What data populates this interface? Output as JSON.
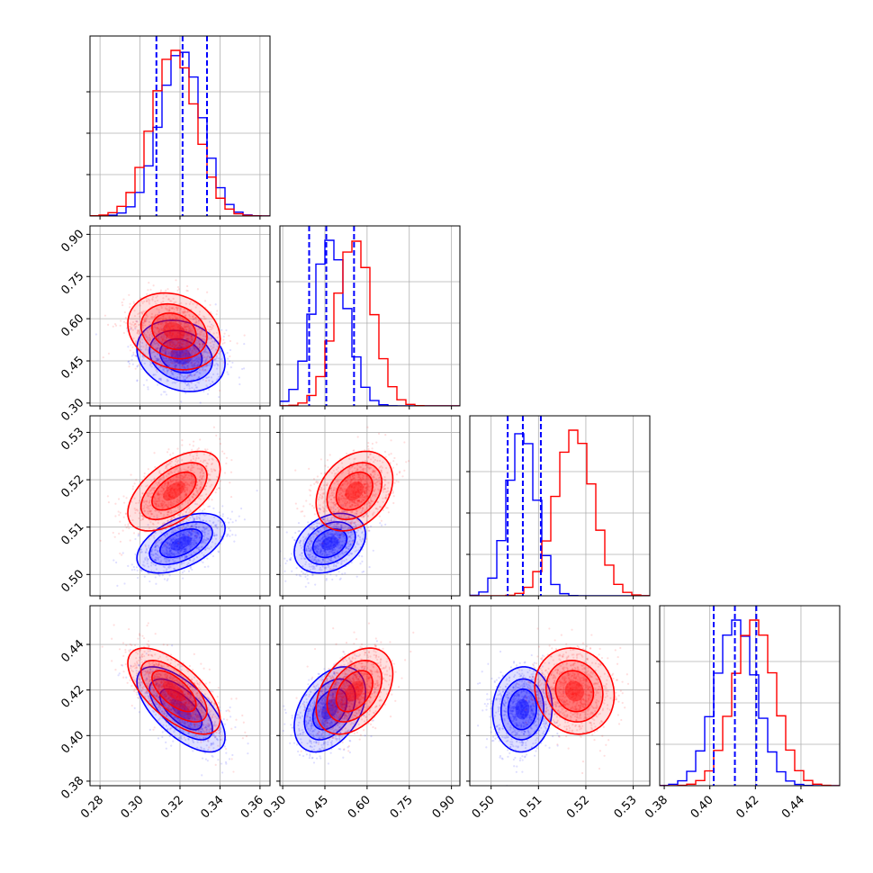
{
  "chart_data": {
    "type": "corner",
    "description_of_layout": "4x4 lower-triangular corner plot",
    "grid": true,
    "colors": {
      "series_a": "#0000ff",
      "series_b": "#ff0000"
    },
    "parameters": [
      {
        "ticks": [
          "0.28",
          "0.30",
          "0.32",
          "0.34",
          "0.36"
        ],
        "tick_values": [
          0.28,
          0.3,
          0.32,
          0.34,
          0.36
        ],
        "range": [
          0.275,
          0.365
        ]
      },
      {
        "ticks": [
          "0.30",
          "0.45",
          "0.60",
          "0.75",
          "0.90"
        ],
        "tick_values": [
          0.3,
          0.45,
          0.6,
          0.75,
          0.9
        ],
        "range": [
          0.29,
          0.93
        ]
      },
      {
        "ticks": [
          "0.50",
          "0.51",
          "0.52",
          "0.53"
        ],
        "tick_values": [
          0.5,
          0.51,
          0.52,
          0.53
        ],
        "range": [
          0.4955,
          0.5335
        ]
      },
      {
        "ticks": [
          "0.38",
          "0.40",
          "0.42",
          "0.44"
        ],
        "tick_values": [
          0.38,
          0.4,
          0.42,
          0.44
        ],
        "range": [
          0.378,
          0.457
        ]
      }
    ],
    "series": [
      {
        "color": "#0000ff",
        "means": [
          0.3205,
          0.4677,
          0.5066,
          0.4115
        ],
        "sigmas": [
          0.0105,
          0.0604,
          0.003,
          0.0089
        ],
        "quantiles": [
          [
            0.3082,
            0.3213,
            0.3335
          ],
          [
            0.394,
            0.455,
            0.5536
          ],
          [
            0.5035,
            0.5067,
            0.5105
          ],
          [
            0.4017,
            0.411,
            0.4204
          ]
        ],
        "correlations": {
          "1-0": -0.2,
          "2-0": 0.5,
          "2-1": 0.3,
          "3-0": -0.65,
          "3-1": 0.4,
          "3-2": 0.05
        }
      },
      {
        "color": "#ff0000",
        "means": [
          0.317,
          0.555,
          0.5176,
          0.4195
        ],
        "sigmas": [
          0.011,
          0.065,
          0.004,
          0.009
        ],
        "correlations": {
          "1-0": -0.2,
          "2-0": 0.55,
          "2-1": 0.3,
          "3-0": -0.65,
          "3-1": 0.4,
          "3-2": -0.1
        }
      }
    ]
  }
}
